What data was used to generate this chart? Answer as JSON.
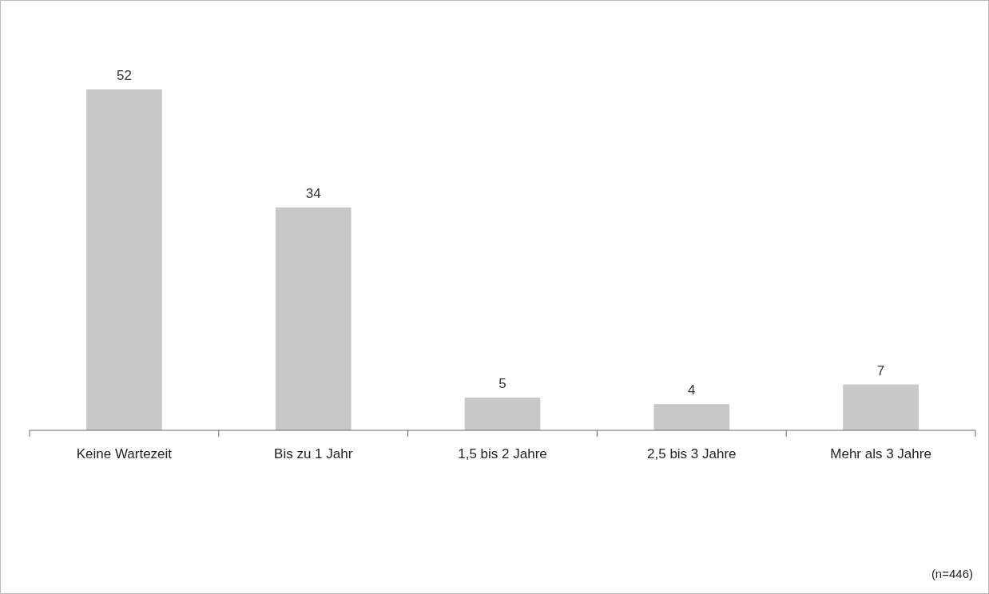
{
  "chart_data": {
    "type": "bar",
    "categories": [
      "Keine Wartezeit",
      "Bis zu 1 Jahr",
      "1,5 bis 2 Jahre",
      "2,5 bis 3 Jahre",
      "Mehr als 3 Jahre"
    ],
    "values": [
      52,
      34,
      5,
      4,
      7
    ],
    "color": "#c8c8c8",
    "data_labels": true,
    "annotations": [
      "(n=446)"
    ]
  }
}
